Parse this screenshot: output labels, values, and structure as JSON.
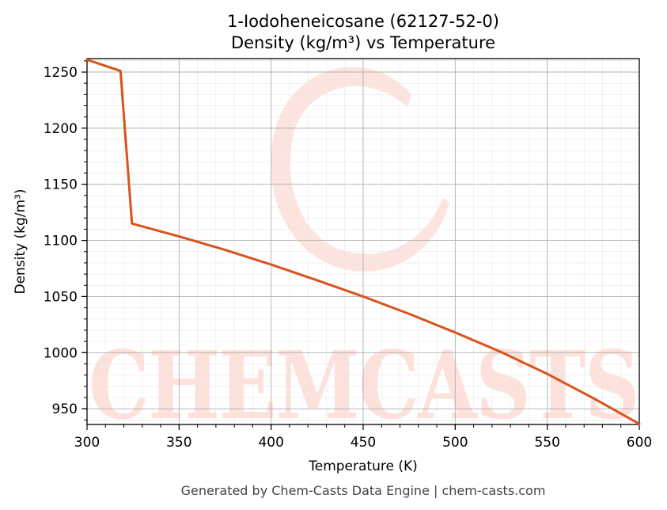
{
  "chart_data": {
    "type": "line",
    "title": "1-Iodoheneicosane (62127-52-0)",
    "subtitle": "Density (kg/m³) vs Temperature",
    "xlabel": "Temperature (K)",
    "ylabel": "Density (kg/m³)",
    "xlim": [
      300,
      600
    ],
    "ylim": [
      936,
      1262
    ],
    "x_ticks": [
      300,
      350,
      400,
      450,
      500,
      550,
      600
    ],
    "y_ticks": [
      950,
      1000,
      1050,
      1100,
      1150,
      1200,
      1250
    ],
    "grid": true,
    "legend": "none",
    "series": [
      {
        "color": "#d9531e",
        "x": [
          300,
          318.2,
          324.4,
          350,
          375,
          400,
          425,
          450,
          475,
          500,
          525,
          550,
          575,
          600
        ],
        "y": [
          1261,
          1251,
          1115,
          1103.5,
          1091.5,
          1078.5,
          1064.5,
          1050,
          1034.5,
          1018,
          1000.5,
          981,
          959.5,
          936.5
        ]
      }
    ]
  },
  "watermark": "CHEMCASTS",
  "footer": "Generated by Chem-Casts Data Engine | chem-casts.com"
}
